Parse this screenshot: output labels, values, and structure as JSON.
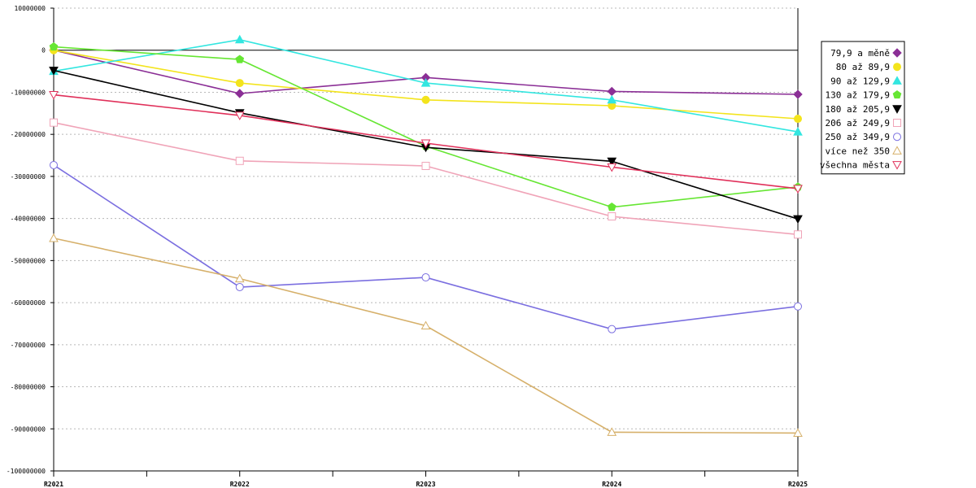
{
  "chart_data": {
    "type": "line",
    "title": "",
    "xlabel": "",
    "ylabel": "",
    "categories": [
      "R2021",
      "R2022",
      "R2023",
      "R2024",
      "R2025"
    ],
    "ylim": [
      -100000000,
      10000000
    ],
    "ytick_step": 10000000,
    "grid": true,
    "legend_position": "top-right",
    "series": [
      {
        "name": "79,9 a měně",
        "color": "#8b2f96",
        "marker": "diamond",
        "values": [
          0,
          -10300000,
          -6500000,
          -9800000,
          -10500000
        ]
      },
      {
        "name": "80 až 89,9",
        "color": "#f3e41c",
        "marker": "circle-filled",
        "values": [
          0,
          -7800000,
          -11800000,
          -13200000,
          -16300000
        ]
      },
      {
        "name": "90 až 129,9",
        "color": "#33e6e0",
        "marker": "triangle-filled",
        "values": [
          -5000000,
          2500000,
          -7800000,
          -11800000,
          -19400000
        ]
      },
      {
        "name": "130 až 179,9",
        "color": "#66e633",
        "marker": "pentagon-filled",
        "values": [
          800000,
          -2200000,
          -22800000,
          -37300000,
          -32500000
        ]
      },
      {
        "name": "180 až 205,9",
        "color": "#000000",
        "marker": "triangle-down-filled",
        "values": [
          -4800000,
          -14900000,
          -23100000,
          -26400000,
          -40100000
        ]
      },
      {
        "name": "206 až 249,9",
        "color": "#f0a4b8",
        "marker": "square-open",
        "values": [
          -17200000,
          -26300000,
          -27500000,
          -39500000,
          -43800000
        ]
      },
      {
        "name": "250 až 349,9",
        "color": "#7b6fe0",
        "marker": "circle-open",
        "values": [
          -27300000,
          -56300000,
          -54000000,
          -66300000,
          -60900000
        ]
      },
      {
        "name": "více než 350",
        "color": "#d6b06a",
        "marker": "triangle-open",
        "values": [
          -44700000,
          -54300000,
          -65500000,
          -90800000,
          -91000000
        ]
      },
      {
        "name": "všechna města",
        "color": "#e0305a",
        "marker": "triangle-down-open",
        "values": [
          -10600000,
          -15500000,
          -22100000,
          -27800000,
          -32900000
        ]
      }
    ]
  }
}
